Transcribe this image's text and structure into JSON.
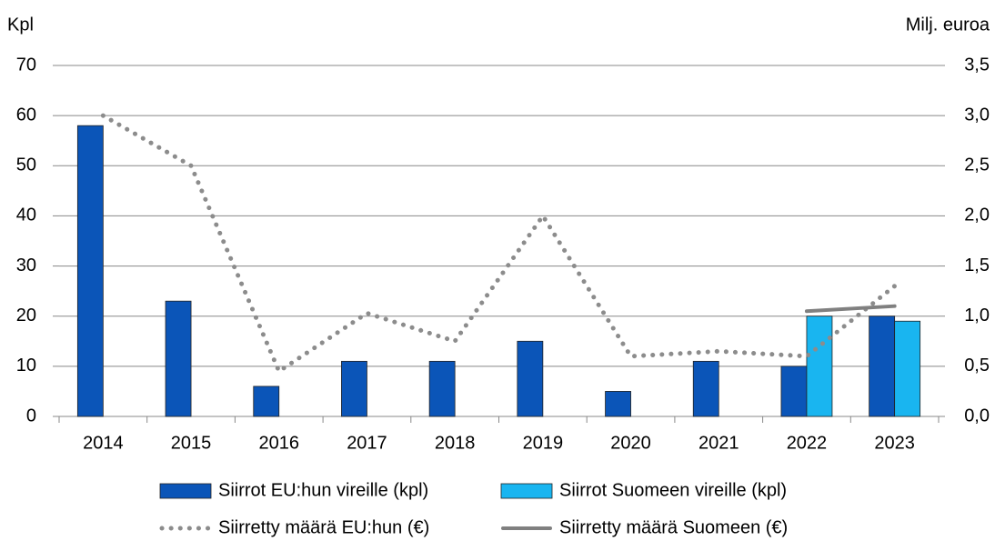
{
  "chart_data": {
    "type": "bar",
    "y_label": "Kpl",
    "y2_label": "Milj. euroa",
    "categories": [
      "2014",
      "2015",
      "2016",
      "2017",
      "2018",
      "2019",
      "2020",
      "2021",
      "2022",
      "2023"
    ],
    "series": [
      {
        "name": "Siirrot EU:hun vireille (kpl)",
        "type": "bar",
        "color": "#0b55b8",
        "values": [
          58,
          23,
          6,
          11,
          11,
          15,
          5,
          11,
          10,
          20
        ]
      },
      {
        "name": "Siirrot Suomeen vireille (kpl)",
        "type": "bar",
        "color": "#19b5f0",
        "values": [
          null,
          null,
          null,
          null,
          null,
          null,
          null,
          null,
          20,
          19
        ]
      },
      {
        "name": "Siirretty määrä EU:hun (€)",
        "type": "line",
        "axis": "y2",
        "dash": "dotted",
        "color": "#8c8c8c",
        "values": [
          3.0,
          2.5,
          0.45,
          1.03,
          0.75,
          2.0,
          0.6,
          0.65,
          0.6,
          1.3
        ]
      },
      {
        "name": "Siirretty määrä Suomeen (€)",
        "type": "line",
        "axis": "y2",
        "dash": "solid",
        "color": "#808080",
        "values": [
          null,
          null,
          null,
          null,
          null,
          null,
          null,
          null,
          1.05,
          1.1
        ]
      }
    ],
    "ylim": [
      0,
      70
    ],
    "yticks": [
      0,
      10,
      20,
      30,
      40,
      50,
      60,
      70
    ],
    "y2lim": [
      0,
      3.5
    ],
    "y2ticks": [
      {
        "value": 0,
        "label": "0,0"
      },
      {
        "value": 0.5,
        "label": "0,5"
      },
      {
        "value": 1,
        "label": "1,0"
      },
      {
        "value": 1.5,
        "label": "1,5"
      },
      {
        "value": 2,
        "label": "2,0"
      },
      {
        "value": 2.5,
        "label": "2,5"
      },
      {
        "value": 3,
        "label": "3,0"
      },
      {
        "value": 3.5,
        "label": "3,5"
      }
    ],
    "grid": true,
    "legend": "bottom"
  }
}
